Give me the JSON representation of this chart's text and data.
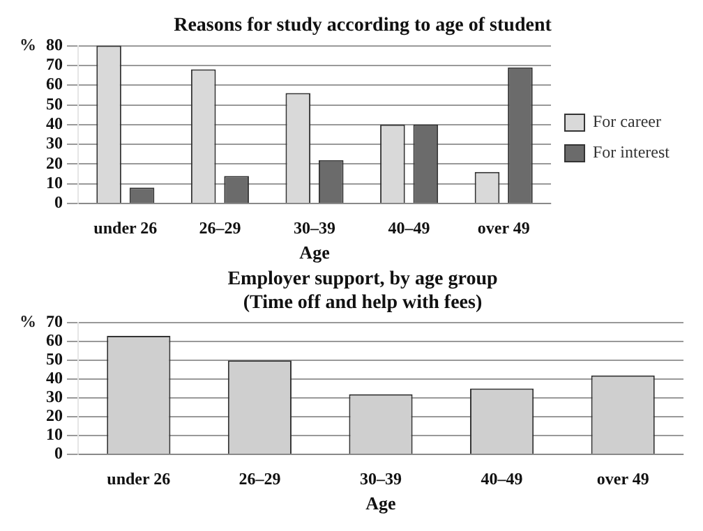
{
  "chart_data": [
    {
      "type": "bar",
      "title": "Reasons for study according to age of student",
      "xlabel": "Age",
      "ylabel": "%",
      "categories": [
        "under 26",
        "26–29",
        "30–39",
        "40–49",
        "over 49"
      ],
      "series": [
        {
          "name": "For career",
          "color": "#d9d9d9",
          "values": [
            80,
            68,
            56,
            40,
            16
          ]
        },
        {
          "name": "For interest",
          "color": "#6b6b6b",
          "values": [
            8,
            14,
            22,
            40,
            69
          ]
        }
      ],
      "ylim": [
        0,
        80
      ],
      "yticks": [
        0,
        10,
        20,
        30,
        40,
        50,
        60,
        70,
        80
      ],
      "grid": "y",
      "legend": "right"
    },
    {
      "type": "bar",
      "title": "Employer support, by age group",
      "subtitle": "(Time off and help with fees)",
      "xlabel": "Age",
      "ylabel": "%",
      "categories": [
        "under 26",
        "26–29",
        "30–39",
        "40–49",
        "over 49"
      ],
      "values": [
        63,
        50,
        32,
        35,
        42
      ],
      "color": "#cfcfcf",
      "ylim": [
        0,
        70
      ],
      "yticks": [
        0,
        10,
        20,
        30,
        40,
        50,
        60,
        70
      ],
      "grid": "y"
    }
  ]
}
